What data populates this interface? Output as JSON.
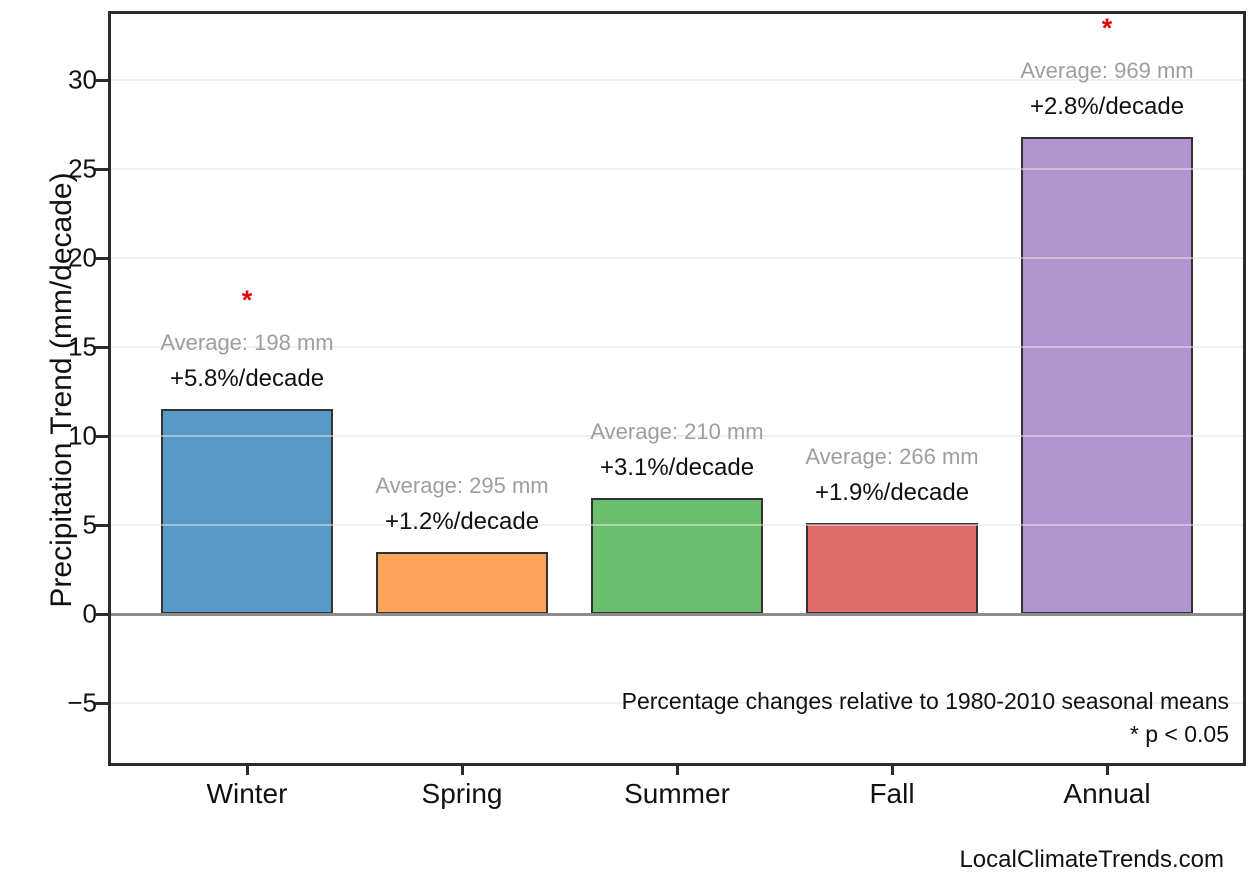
{
  "figure": {
    "watermark": "LocalClimateTrends.com"
  },
  "chart_data": {
    "type": "bar",
    "title": "",
    "xlabel": "",
    "ylabel": "Precipitation Trend (mm/decade)",
    "categories": [
      "Winter",
      "Spring",
      "Summer",
      "Fall",
      "Annual"
    ],
    "values": [
      11.5,
      3.5,
      6.5,
      5.1,
      26.8
    ],
    "ylim": [
      -8.4,
      33.7
    ],
    "yticks": [
      30,
      25,
      20,
      15,
      10,
      5,
      0,
      -5
    ],
    "ytick_labels": [
      "30",
      "25",
      "20",
      "15",
      "10",
      "5",
      "0",
      "−5"
    ],
    "grid": true,
    "zero_line": true,
    "legend": "none",
    "significance_marker": "*",
    "footnote_line1": "Percentage changes relative to 1980-2010 seasonal means",
    "footnote_line2": "* p < 0.05",
    "bars": [
      {
        "category": "Winter",
        "value": 11.5,
        "average_mm": 198,
        "trend_pct_per_decade": 5.8,
        "average_label": "Average: 198 mm",
        "trend_label": "+5.8%/decade",
        "significant": true,
        "color": "#5799C7"
      },
      {
        "category": "Spring",
        "value": 3.5,
        "average_mm": 295,
        "trend_pct_per_decade": 1.2,
        "average_label": "Average: 295 mm",
        "trend_label": "+1.2%/decade",
        "significant": false,
        "color": "#FCA45A"
      },
      {
        "category": "Summer",
        "value": 6.5,
        "average_mm": 210,
        "trend_pct_per_decade": 3.1,
        "average_label": "Average: 210 mm",
        "trend_label": "+3.1%/decade",
        "significant": false,
        "color": "#6ABE6C"
      },
      {
        "category": "Fall",
        "value": 5.1,
        "average_mm": 266,
        "trend_pct_per_decade": 1.9,
        "average_label": "Average: 266 mm",
        "trend_label": "+1.9%/decade",
        "significant": false,
        "color": "#E16A6A"
      },
      {
        "category": "Annual",
        "value": 26.8,
        "average_mm": 969,
        "trend_pct_per_decade": 2.8,
        "average_label": "Average: 969 mm",
        "trend_label": "+2.8%/decade",
        "significant": true,
        "color": "#B194CF"
      }
    ],
    "colors": {
      "bar_edge": "#333333",
      "axis": "#2b2b2b",
      "zero_line": "#8c8c8c",
      "average_text": "#9e9e9e",
      "trend_text": "#111111",
      "significance": "#e8000b"
    }
  }
}
